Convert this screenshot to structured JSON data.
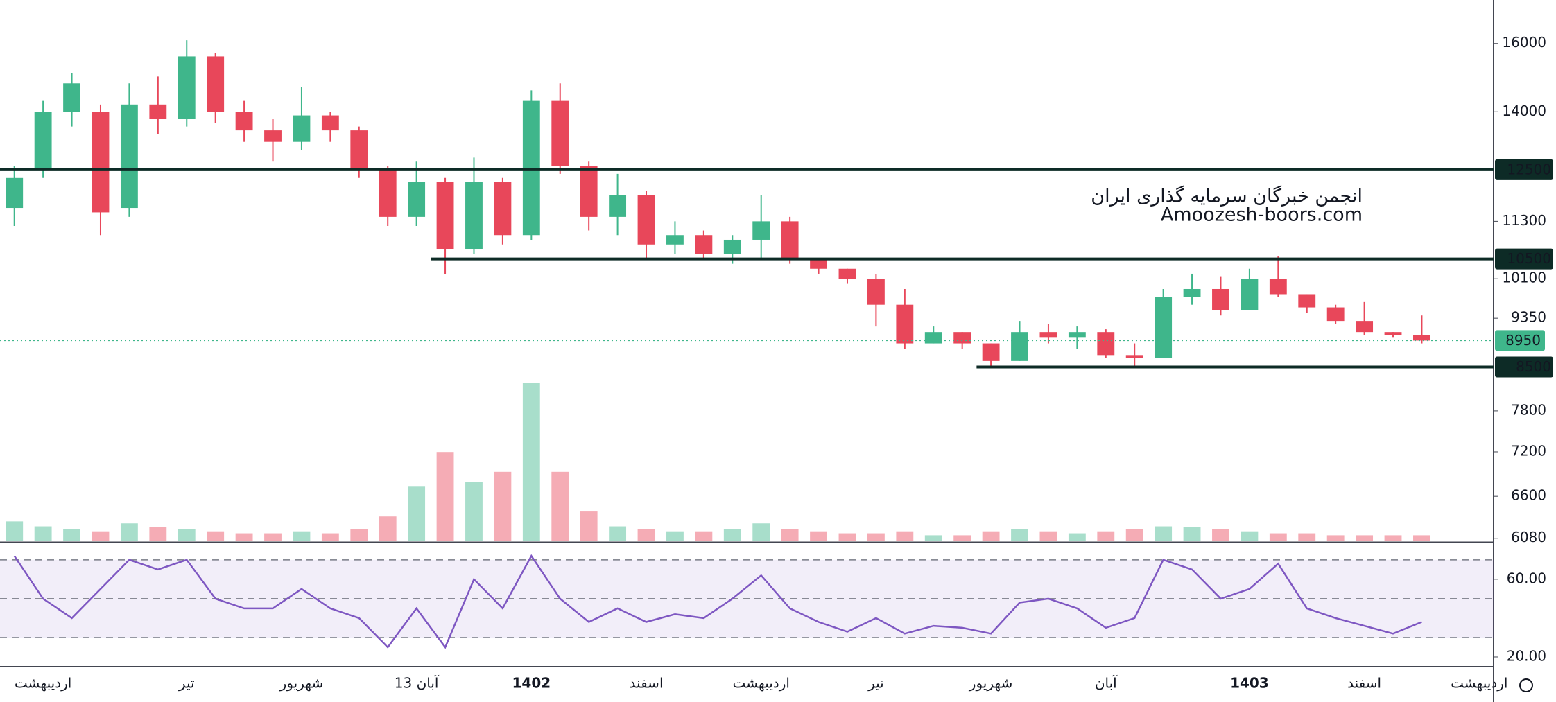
{
  "chart_data": {
    "type": "candlestick",
    "log_scale": true,
    "annotations": [
      "انجمن خبرگان سرمایه گذاری ایران",
      "Amoozesh-boors.com"
    ],
    "categories": [
      null,
      "اردیبهشت",
      null,
      null,
      null,
      null,
      "تیر",
      null,
      null,
      null,
      "شهریور",
      null,
      null,
      null,
      "13 آبان",
      null,
      null,
      null,
      "1402",
      null,
      null,
      null,
      "اسفند",
      null,
      null,
      null,
      "اردیبهشت",
      null,
      null,
      null,
      "تیر",
      null,
      null,
      null,
      "شهریور",
      null,
      null,
      null,
      "آبان",
      null,
      null,
      null,
      null,
      "1403",
      null,
      null,
      null,
      "اسفند",
      null,
      null,
      null,
      "اردیبهشت"
    ],
    "open": [
      11600,
      12500,
      14000,
      14000,
      11600,
      14200,
      13800,
      15600,
      14000,
      13500,
      13200,
      13900,
      13500,
      12500,
      11400,
      12200,
      10700,
      12200,
      11000,
      14300,
      12600,
      11400,
      11900,
      10800,
      11000,
      10600,
      10900,
      11300,
      10500,
      10300,
      10100,
      9600,
      8900,
      9100,
      8900,
      8600,
      9100,
      9000,
      9100,
      8700,
      8650,
      9750,
      9900,
      9500,
      10100,
      9800,
      9550,
      9300,
      9100,
      9050,
      null,
      null
    ],
    "high": [
      12600,
      14300,
      15100,
      14200,
      14800,
      15000,
      16100,
      15700,
      14300,
      13800,
      14700,
      14000,
      13600,
      12600,
      12700,
      12300,
      12800,
      12300,
      14600,
      14800,
      12700,
      12400,
      12000,
      11300,
      11100,
      11000,
      11900,
      11400,
      10500,
      10300,
      10200,
      9900,
      9200,
      9100,
      8900,
      9300,
      9250,
      9200,
      9150,
      8900,
      9900,
      10200,
      10150,
      10300,
      10550,
      9800,
      9600,
      9650,
      9100,
      9400,
      null,
      null
    ],
    "low": [
      11200,
      12300,
      13600,
      11000,
      11400,
      13400,
      13600,
      13700,
      13200,
      12700,
      13000,
      13200,
      12300,
      11200,
      11200,
      10200,
      10600,
      10800,
      10900,
      12400,
      11100,
      11000,
      10500,
      10600,
      10500,
      10400,
      10500,
      10400,
      10200,
      10000,
      9200,
      8800,
      8900,
      8800,
      8500,
      8600,
      8900,
      8800,
      8650,
      8500,
      8650,
      9600,
      9400,
      9500,
      9750,
      9450,
      9250,
      9050,
      9000,
      8900,
      null,
      null
    ],
    "close": [
      12300,
      14000,
      14800,
      11500,
      14200,
      13800,
      15600,
      14000,
      13500,
      13200,
      13900,
      13500,
      12500,
      11400,
      12200,
      10700,
      12200,
      11000,
      14300,
      12600,
      11400,
      11900,
      10800,
      11000,
      10600,
      10900,
      11300,
      10500,
      10300,
      10100,
      9600,
      8900,
      9100,
      8900,
      8600,
      9100,
      9000,
      9100,
      8700,
      8650,
      9750,
      9900,
      9500,
      10100,
      9800,
      9550,
      9300,
      9100,
      9050,
      8950,
      null,
      null
    ],
    "volume": [
      20,
      15,
      12,
      10,
      18,
      14,
      12,
      10,
      8,
      8,
      10,
      8,
      12,
      25,
      55,
      90,
      60,
      70,
      160,
      70,
      30,
      15,
      12,
      10,
      10,
      12,
      18,
      12,
      10,
      8,
      8,
      10,
      6,
      6,
      10,
      12,
      10,
      8,
      10,
      12,
      15,
      14,
      12,
      10,
      8,
      8,
      6,
      6,
      6,
      6,
      null,
      null
    ],
    "up_color": "#3fb68b",
    "down_color": "#e8475a",
    "ylim": [
      6045,
      17420
    ],
    "yticks": [
      16000,
      14000,
      11300,
      10100,
      9350,
      7800,
      7200,
      6600,
      6080
    ],
    "levels": [
      {
        "value": 12500,
        "from": 0
      },
      {
        "value": 10500,
        "from": 15
      },
      {
        "value": 8500,
        "from": 34
      }
    ],
    "level_color": "#0d2b26",
    "last_price": 8950,
    "last_price_color": "#3fb68b",
    "rsi": {
      "values": [
        72,
        50,
        40,
        55,
        70,
        65,
        70,
        50,
        45,
        45,
        55,
        45,
        40,
        25,
        45,
        25,
        60,
        45,
        72,
        50,
        38,
        45,
        38,
        42,
        40,
        50,
        62,
        45,
        38,
        33,
        40,
        32,
        36,
        35,
        32,
        48,
        50,
        45,
        35,
        40,
        70,
        65,
        50,
        55,
        68,
        45,
        40,
        36,
        32,
        38,
        null,
        null
      ],
      "color": "#7e57c2",
      "ylim": [
        15,
        78.5
      ],
      "yticks": [
        {
          "value": 60,
          "label": "60.00"
        },
        {
          "value": 20,
          "label": "20.00"
        }
      ],
      "bands": [
        70,
        50,
        30
      ]
    }
  }
}
